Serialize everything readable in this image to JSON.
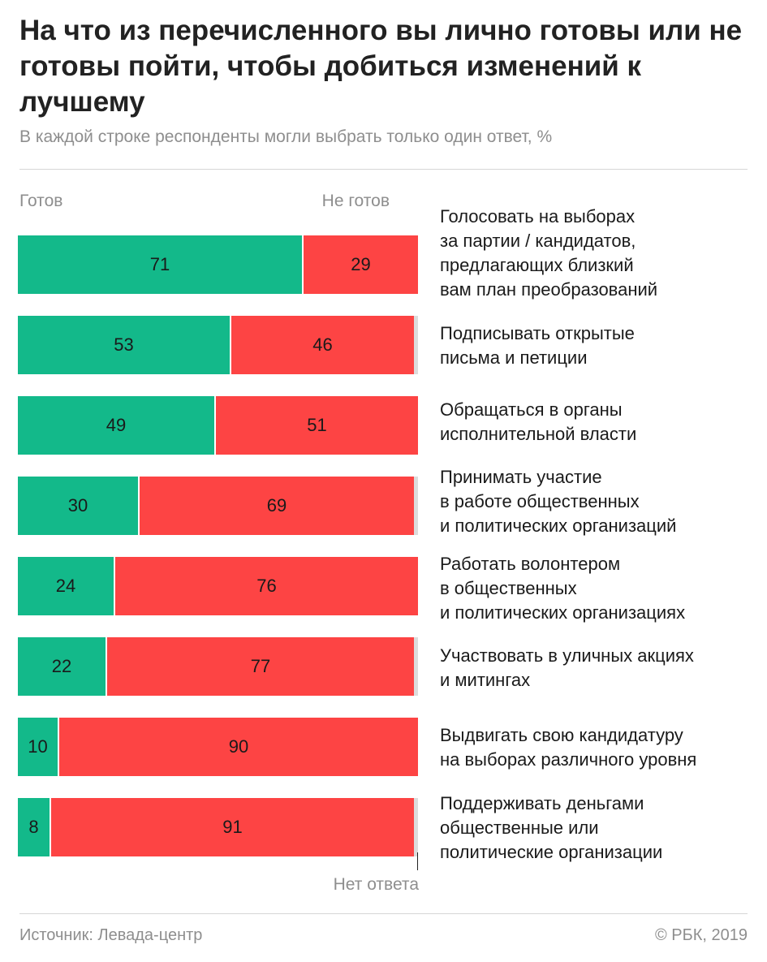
{
  "header": {
    "title": "На что из перечисленного вы лично готовы или не готовы пойти, чтобы добиться изменений к лучшему",
    "subtitle": "В каждой строке респонденты могли выбрать только один ответ, %"
  },
  "legend": {
    "ready": "Готов",
    "not_ready": "Не готов",
    "no_answer": "Нет ответа"
  },
  "colors": {
    "ready": "#13b98a",
    "not_ready": "#fd4444",
    "no_answer": "#dcdcdc"
  },
  "chart_data": {
    "type": "bar",
    "orientation": "horizontal",
    "stacked": true,
    "categories": [
      "Голосовать на выборах\nза партии / кандидатов,\nпредлагающих близкий\nвам план преобразований",
      "Подписывать открытые\nписьма и петиции",
      "Обращаться в органы\nисполнительной власти",
      "Принимать участие\nв работе общественных\nи политических организаций",
      "Работать волонтером\nв общественных\nи политических организациях",
      "Участвовать в уличных акциях\nи митингах",
      "Выдвигать свою кандидатуру\nна выборах различного уровня",
      "Поддерживать деньгами\nобщественные или\nполитические организации"
    ],
    "series": [
      {
        "name": "Готов",
        "values": [
          71,
          53,
          49,
          30,
          24,
          22,
          10,
          8
        ]
      },
      {
        "name": "Не готов",
        "values": [
          29,
          46,
          51,
          69,
          76,
          77,
          90,
          91
        ]
      }
    ],
    "xlim": [
      0,
      100
    ],
    "legend_position": "top"
  },
  "footer": {
    "source": "Источник: Левада-центр",
    "copyright": "© РБК, 2019"
  }
}
